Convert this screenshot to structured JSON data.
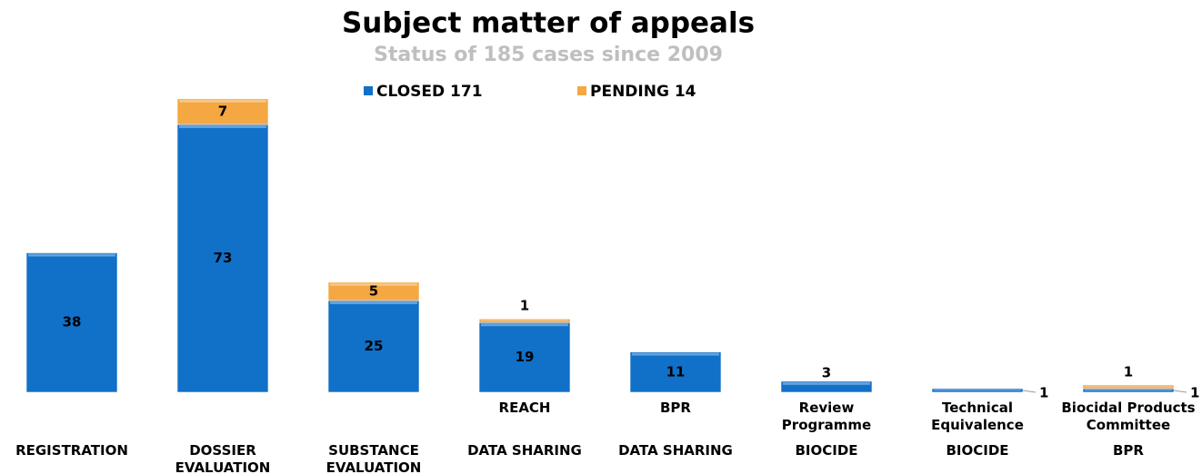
{
  "chart_data": {
    "type": "stacked-bar",
    "title": "Subject matter of appeals",
    "subtitle": "Status of 185 cases since 2009",
    "categories": [
      "REGISTRATION",
      "DOSSIER EVALUATION",
      "SUBSTANCE EVALUATION",
      "DATA SHARING",
      "DATA SHARING",
      "BIOCIDE",
      "BIOCIDE",
      "BPR"
    ],
    "subcategories": [
      null,
      null,
      null,
      "REACH",
      "BPR",
      "Review Programme",
      "Technical Equivalence",
      "Biocidal Products Committee"
    ],
    "series": [
      {
        "name": "CLOSED 171",
        "color": "#1170c8",
        "values": [
          38,
          73,
          25,
          19,
          11,
          3,
          1,
          1
        ]
      },
      {
        "name": "PENDING 14",
        "color": "#f5a742",
        "values": [
          null,
          7,
          5,
          1,
          null,
          null,
          null,
          1
        ]
      }
    ],
    "legend": "top"
  }
}
